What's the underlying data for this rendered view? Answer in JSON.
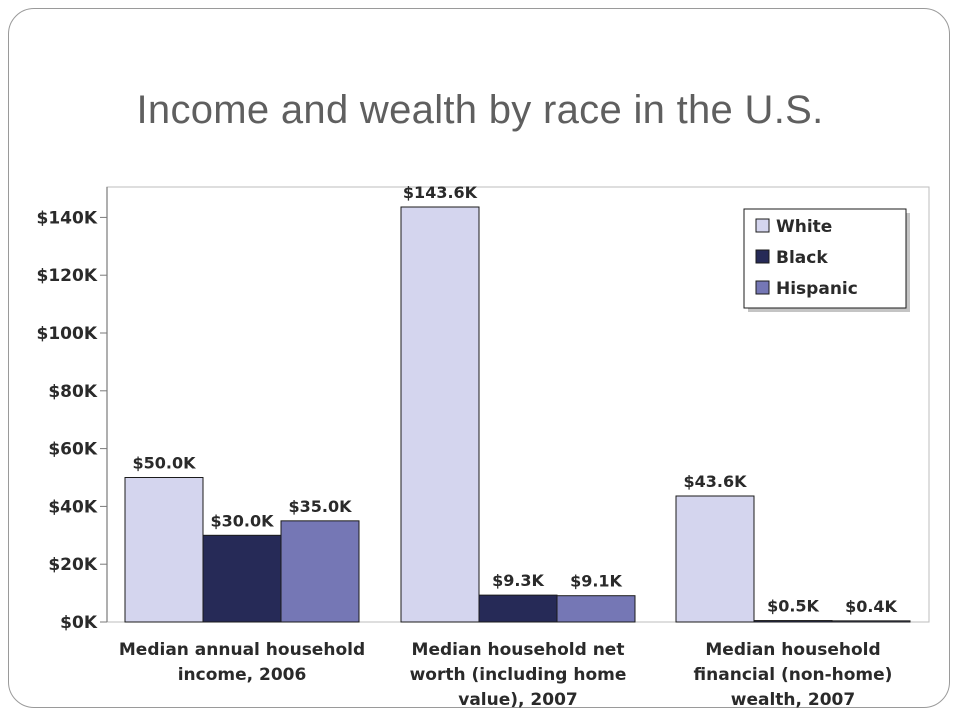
{
  "slide": {
    "title": "Income and wealth by race in the U.S."
  },
  "chart_data": {
    "type": "bar",
    "categories": [
      [
        "Median annual household",
        "income, 2006"
      ],
      [
        "Median household net",
        "worth (including home",
        "value), 2007"
      ],
      [
        "Median household",
        "financial (non-home)",
        "wealth, 2007"
      ]
    ],
    "series": [
      {
        "name": "White",
        "values": [
          50.0,
          143.6,
          43.6
        ],
        "labels": [
          "$50.0K",
          "$143.6K",
          "$43.6K"
        ],
        "color": "#d4d5ee"
      },
      {
        "name": "Black",
        "values": [
          30.0,
          9.3,
          0.5
        ],
        "labels": [
          "$30.0K",
          "$9.3K",
          "$0.5K"
        ],
        "color": "#262a57"
      },
      {
        "name": "Hispanic",
        "values": [
          35.0,
          9.1,
          0.4
        ],
        "labels": [
          "$35.0K",
          "$9.1K",
          "$0.4K"
        ],
        "color": "#7577b5"
      }
    ],
    "yticks": [
      0,
      20,
      40,
      60,
      80,
      100,
      120,
      140
    ],
    "ytick_labels": [
      "$0K",
      "$20K",
      "$40K",
      "$60K",
      "$80K",
      "$100K",
      "$120K",
      "$140K"
    ],
    "ylim": [
      0,
      143.6
    ],
    "units": "thousands of US dollars",
    "legend_position": "top-right",
    "grid": false
  }
}
